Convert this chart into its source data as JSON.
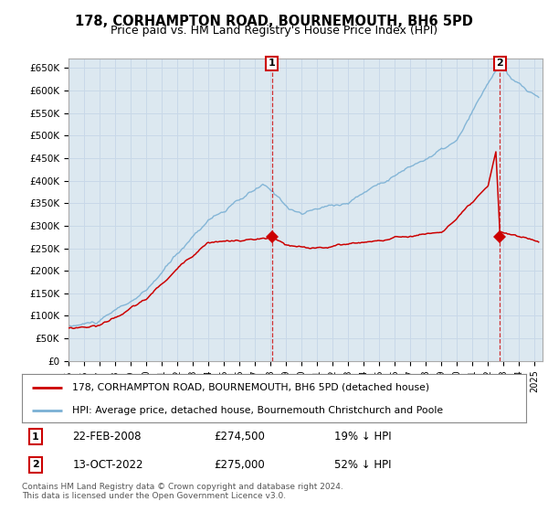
{
  "title": "178, CORHAMPTON ROAD, BOURNEMOUTH, BH6 5PD",
  "subtitle": "Price paid vs. HM Land Registry's House Price Index (HPI)",
  "sale1": {
    "date": "22-FEB-2008",
    "price": 274500,
    "pct": "19% ↓ HPI",
    "label": "1"
  },
  "sale2": {
    "date": "13-OCT-2022",
    "price": 275000,
    "pct": "52% ↓ HPI",
    "label": "2"
  },
  "legend_line1": "178, CORHAMPTON ROAD, BOURNEMOUTH, BH6 5PD (detached house)",
  "legend_line2": "HPI: Average price, detached house, Bournemouth Christchurch and Poole",
  "footnote": "Contains HM Land Registry data © Crown copyright and database right 2024.\nThis data is licensed under the Open Government Licence v3.0.",
  "hpi_color": "#7ab0d4",
  "price_color": "#cc0000",
  "marker_color": "#cc0000",
  "grid_color": "#c8d8e8",
  "bg_color": "#ffffff",
  "plot_bg_color": "#dce8f0",
  "ylim": [
    0,
    670000
  ],
  "yticks": [
    0,
    50000,
    100000,
    150000,
    200000,
    250000,
    300000,
    350000,
    400000,
    450000,
    500000,
    550000,
    600000,
    650000
  ],
  "ytick_labels": [
    "£0",
    "£50K",
    "£100K",
    "£150K",
    "£200K",
    "£250K",
    "£300K",
    "£350K",
    "£400K",
    "£450K",
    "£500K",
    "£550K",
    "£600K",
    "£650K"
  ]
}
